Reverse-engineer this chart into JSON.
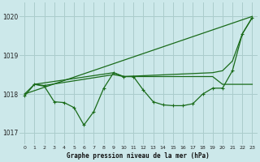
{
  "title": "Graphe pression niveau de la mer (hPa)",
  "bg_color": "#cce8ea",
  "grid_color": "#aacccc",
  "line_color": "#1a6b1a",
  "xlim": [
    -0.5,
    23.5
  ],
  "ylim": [
    1016.7,
    1020.35
  ],
  "yticks": [
    1017,
    1018,
    1019,
    1020
  ],
  "xticks": [
    0,
    1,
    2,
    3,
    4,
    5,
    6,
    7,
    8,
    9,
    10,
    11,
    12,
    13,
    14,
    15,
    16,
    17,
    18,
    19,
    20,
    21,
    22,
    23
  ],
  "series": [
    {
      "x": [
        0,
        1,
        2,
        3,
        4,
        5,
        6,
        7,
        8,
        9,
        10,
        11,
        12,
        13,
        14,
        15,
        16,
        17,
        18,
        19,
        20,
        21,
        22,
        23
      ],
      "y": [
        1017.95,
        1018.25,
        1018.2,
        1017.8,
        1017.78,
        1017.65,
        1017.2,
        1017.55,
        1018.15,
        1018.55,
        1018.45,
        1018.45,
        1018.1,
        1017.8,
        1017.72,
        1017.7,
        1017.7,
        1017.75,
        1018.0,
        1018.15,
        1018.15,
        1018.6,
        1019.55,
        1019.97
      ]
    },
    {
      "x": [
        0,
        1,
        2,
        9,
        10,
        11,
        12,
        13,
        14,
        15,
        16,
        17,
        18,
        19,
        20,
        21,
        22,
        23
      ],
      "y": [
        1018.0,
        1018.25,
        1018.22,
        1018.5,
        1018.45,
        1018.45,
        1018.45,
        1018.45,
        1018.45,
        1018.45,
        1018.45,
        1018.45,
        1018.45,
        1018.45,
        1018.25,
        1018.25,
        1018.25,
        1018.25
      ]
    },
    {
      "x": [
        0,
        23
      ],
      "y": [
        1018.0,
        1020.0
      ]
    },
    {
      "x": [
        1,
        9,
        10,
        19,
        20,
        21,
        22,
        23
      ],
      "y": [
        1018.25,
        1018.55,
        1018.45,
        1018.55,
        1018.6,
        1018.85,
        1019.55,
        1019.97
      ]
    }
  ]
}
